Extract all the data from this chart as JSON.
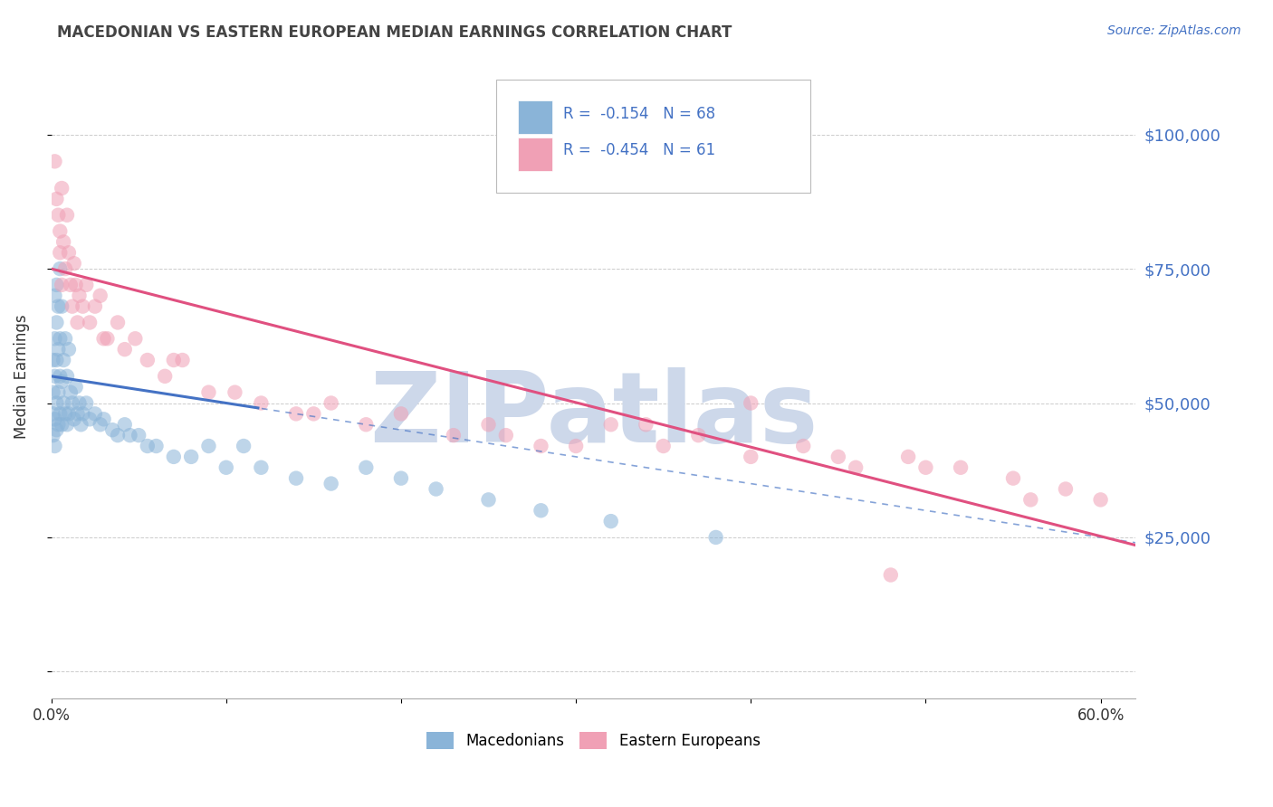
{
  "title": "MACEDONIAN VS EASTERN EUROPEAN MEDIAN EARNINGS CORRELATION CHART",
  "source": "Source: ZipAtlas.com",
  "ylabel": "Median Earnings",
  "xlim": [
    0.0,
    0.62
  ],
  "ylim": [
    -5000,
    115000
  ],
  "yticks": [
    0,
    25000,
    50000,
    75000,
    100000
  ],
  "ytick_labels": [
    "",
    "$25,000",
    "$50,000",
    "$75,000",
    "$100,000"
  ],
  "xticks": [
    0.0,
    0.1,
    0.2,
    0.3,
    0.4,
    0.5,
    0.6
  ],
  "xtick_labels_show": [
    "0.0%",
    "",
    "",
    "",
    "",
    "",
    "60.0%"
  ],
  "blue_R": -0.154,
  "blue_N": 68,
  "pink_R": -0.454,
  "pink_N": 61,
  "blue_line_color": "#4472c4",
  "pink_line_color": "#e05080",
  "axis_label_color": "#4472c4",
  "title_color": "#444444",
  "grid_color": "#cccccc",
  "watermark": "ZIPatlas",
  "watermark_color": "#cdd8ea",
  "blue_scatter_color": "#8ab4d8",
  "pink_scatter_color": "#f0a0b5",
  "blue_x": [
    0.001,
    0.001,
    0.001,
    0.001,
    0.002,
    0.002,
    0.002,
    0.002,
    0.002,
    0.003,
    0.003,
    0.003,
    0.003,
    0.003,
    0.004,
    0.004,
    0.004,
    0.004,
    0.005,
    0.005,
    0.005,
    0.005,
    0.006,
    0.006,
    0.006,
    0.007,
    0.007,
    0.008,
    0.008,
    0.009,
    0.009,
    0.01,
    0.01,
    0.011,
    0.012,
    0.013,
    0.014,
    0.015,
    0.016,
    0.017,
    0.018,
    0.02,
    0.022,
    0.025,
    0.028,
    0.03,
    0.035,
    0.038,
    0.042,
    0.045,
    0.05,
    0.055,
    0.06,
    0.07,
    0.08,
    0.09,
    0.1,
    0.11,
    0.12,
    0.14,
    0.16,
    0.18,
    0.2,
    0.22,
    0.25,
    0.28,
    0.32,
    0.38
  ],
  "blue_y": [
    52000,
    48000,
    58000,
    44000,
    62000,
    55000,
    47000,
    70000,
    42000,
    65000,
    58000,
    50000,
    72000,
    45000,
    68000,
    60000,
    52000,
    46000,
    75000,
    62000,
    55000,
    48000,
    68000,
    54000,
    46000,
    58000,
    50000,
    62000,
    48000,
    55000,
    46000,
    60000,
    48000,
    52000,
    50000,
    47000,
    53000,
    48000,
    50000,
    46000,
    48000,
    50000,
    47000,
    48000,
    46000,
    47000,
    45000,
    44000,
    46000,
    44000,
    44000,
    42000,
    42000,
    40000,
    40000,
    42000,
    38000,
    42000,
    38000,
    36000,
    35000,
    38000,
    36000,
    34000,
    32000,
    30000,
    28000,
    25000
  ],
  "pink_x": [
    0.002,
    0.003,
    0.004,
    0.005,
    0.005,
    0.006,
    0.006,
    0.007,
    0.008,
    0.009,
    0.01,
    0.011,
    0.012,
    0.013,
    0.014,
    0.015,
    0.016,
    0.018,
    0.02,
    0.022,
    0.025,
    0.028,
    0.032,
    0.038,
    0.042,
    0.048,
    0.055,
    0.065,
    0.075,
    0.09,
    0.105,
    0.12,
    0.14,
    0.16,
    0.18,
    0.2,
    0.23,
    0.26,
    0.3,
    0.34,
    0.37,
    0.4,
    0.43,
    0.46,
    0.49,
    0.52,
    0.55,
    0.58,
    0.6,
    0.03,
    0.07,
    0.15,
    0.25,
    0.35,
    0.45,
    0.5,
    0.56,
    0.4,
    0.32,
    0.28,
    0.48
  ],
  "pink_y": [
    95000,
    88000,
    85000,
    82000,
    78000,
    90000,
    72000,
    80000,
    75000,
    85000,
    78000,
    72000,
    68000,
    76000,
    72000,
    65000,
    70000,
    68000,
    72000,
    65000,
    68000,
    70000,
    62000,
    65000,
    60000,
    62000,
    58000,
    55000,
    58000,
    52000,
    52000,
    50000,
    48000,
    50000,
    46000,
    48000,
    44000,
    44000,
    42000,
    46000,
    44000,
    40000,
    42000,
    38000,
    40000,
    38000,
    36000,
    34000,
    32000,
    62000,
    58000,
    48000,
    46000,
    42000,
    40000,
    38000,
    32000,
    50000,
    46000,
    42000,
    18000
  ]
}
